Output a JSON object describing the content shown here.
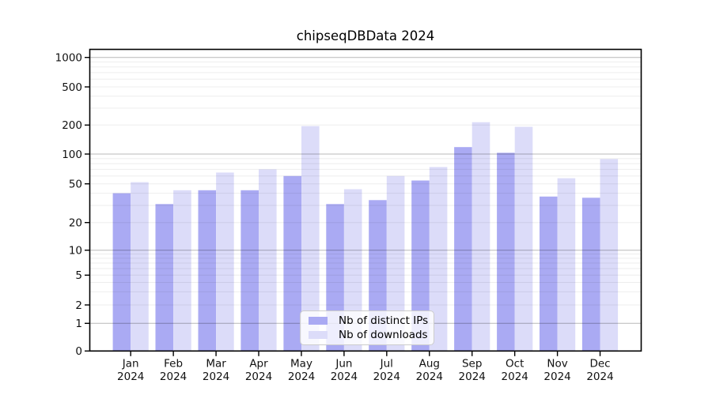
{
  "figure": {
    "title": "chipseqDBData 2024"
  },
  "colors": {
    "ips_bar": "#aaaaf3",
    "downloads_bar": "#dcdcf9",
    "axis": "#000000",
    "major_gridline": "rgba(0,0,0,0.28)",
    "minor_gridline": "rgba(0,0,0,0.07)",
    "tick_label": "#111111",
    "legend_border": "#cccccc"
  },
  "legend": {
    "items": [
      {
        "label": "Nb of distinct IPs",
        "series": "ips"
      },
      {
        "label": "Nb of downloads",
        "series": "downloads"
      }
    ]
  },
  "chart_data": {
    "type": "bar",
    "title": "chipseqDBData 2024",
    "categories": [
      "Jan 2024",
      "Feb 2024",
      "Mar 2024",
      "Apr 2024",
      "May 2024",
      "Jun 2024",
      "Jul 2024",
      "Aug 2024",
      "Sep 2024",
      "Oct 2024",
      "Nov 2024",
      "Dec 2024"
    ],
    "series": [
      {
        "name": "Nb of distinct IPs",
        "values": [
          40,
          31,
          43,
          43,
          60,
          31,
          34,
          54,
          118,
          103,
          37,
          36
        ]
      },
      {
        "name": "Nb of downloads",
        "values": [
          52,
          43,
          65,
          70,
          195,
          44,
          60,
          74,
          214,
          192,
          57,
          89
        ]
      }
    ],
    "yscale": "symlog",
    "y_ticks": [
      0,
      1,
      2,
      5,
      10,
      20,
      50,
      100,
      200,
      500,
      1000
    ],
    "ylim": [
      0,
      1200
    ],
    "xlabel": "",
    "ylabel": "",
    "grid": true,
    "legend_position": "lower center inside plot"
  }
}
